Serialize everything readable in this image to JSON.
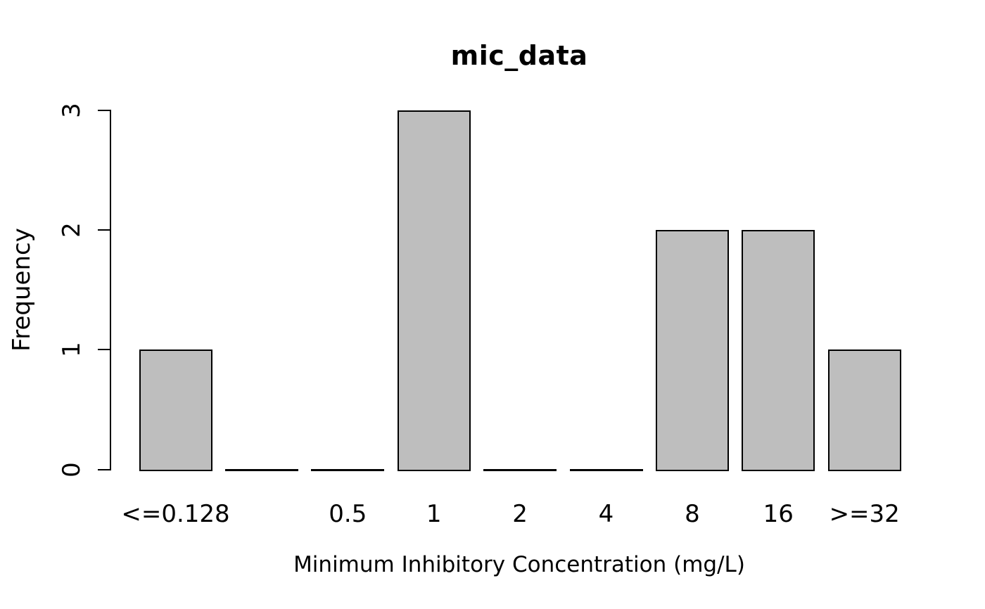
{
  "chart_data": {
    "type": "bar",
    "title": "mic_data",
    "xlabel": "Minimum Inhibitory Concentration (mg/L)",
    "ylabel": "Frequency",
    "categories": [
      "<=0.128",
      "",
      "0.5",
      "1",
      "2",
      "4",
      "8",
      "16",
      ">=32"
    ],
    "values": [
      1,
      0,
      0,
      3,
      0,
      0,
      2,
      2,
      1
    ],
    "yticks": [
      0,
      1,
      2,
      3
    ],
    "ylim": [
      0,
      3
    ],
    "grid": false,
    "legend": false,
    "bar_fill_color": "#bebebe",
    "bar_border_color": "#000000",
    "text_color": "#000000",
    "background_color": "#ffffff"
  }
}
